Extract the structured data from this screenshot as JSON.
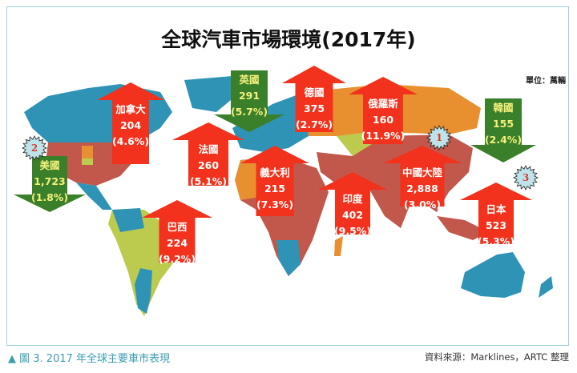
{
  "title": "全球汽車市場環境(2017年)",
  "unit": "單位：萬輛",
  "colors": {
    "ocean_land_blue": "#2f93b6",
    "red": "#c2574b",
    "orange": "#e8902f",
    "lime": "#bccb4d",
    "arrow_up": "#f2321c",
    "arrow_down": "#3a7f2a",
    "star_fill": "#bfe3ea"
  },
  "markets": [
    {
      "id": "canada",
      "name": "加拿大",
      "sales": "204",
      "growth": "(4.6%)",
      "direction": "up"
    },
    {
      "id": "uk",
      "name": "英國",
      "sales": "291",
      "growth": "(5.7%)",
      "direction": "down"
    },
    {
      "id": "france",
      "name": "法國",
      "sales": "260",
      "growth": "(5.1%)",
      "direction": "up"
    },
    {
      "id": "germany",
      "name": "德國",
      "sales": "375",
      "growth": "(2.7%)",
      "direction": "up"
    },
    {
      "id": "russia",
      "name": "俄羅斯",
      "sales": "160",
      "growth": "(11.9%)",
      "direction": "up"
    },
    {
      "id": "korea",
      "name": "韓國",
      "sales": "155",
      "growth": "(2.4%)",
      "direction": "down"
    },
    {
      "id": "usa",
      "name": "美國",
      "sales": "1,723",
      "growth": "(1.8%)",
      "direction": "down"
    },
    {
      "id": "italy",
      "name": "義大利",
      "sales": "215",
      "growth": "(7.3%)",
      "direction": "up"
    },
    {
      "id": "china",
      "name": "中國大陸",
      "sales": "2,888",
      "growth": "(3.0%)",
      "direction": "up"
    },
    {
      "id": "india",
      "name": "印度",
      "sales": "402",
      "growth": "(9.5%)",
      "direction": "up"
    },
    {
      "id": "brazil",
      "name": "巴西",
      "sales": "224",
      "growth": "(9.2%)",
      "direction": "up"
    },
    {
      "id": "japan",
      "name": "日本",
      "sales": "523",
      "growth": "(5.3%)",
      "direction": "up"
    }
  ],
  "rank_badges": [
    {
      "rank": "1",
      "market": "china"
    },
    {
      "rank": "2",
      "market": "usa"
    },
    {
      "rank": "3",
      "market": "japan"
    }
  ],
  "caption": "▲ 圖 3. 2017 年全球主要車市表現",
  "source": "資料來源：Marklines，ARTC 整理"
}
